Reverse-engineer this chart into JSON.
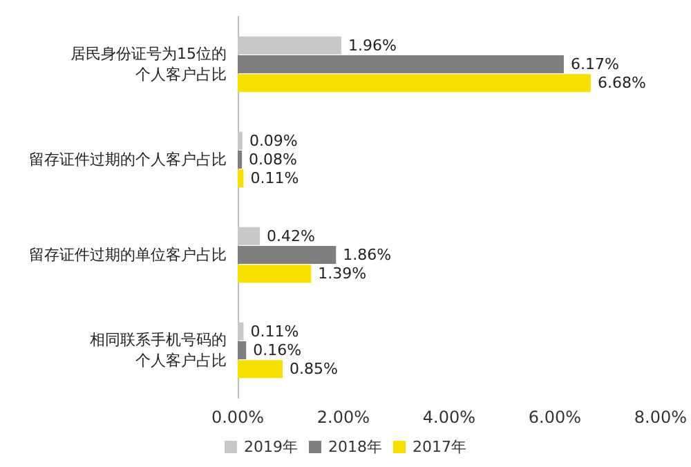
{
  "chart_data": {
    "type": "bar",
    "orientation": "horizontal",
    "categories": [
      "居民身份证号为15位的个人客户占比",
      "留存证件过期的个人客户占比",
      "留存证件过期的单位客户占比",
      "相同联系手机号码的个人客户占比"
    ],
    "series": [
      {
        "name": "2019年",
        "color": "#c8c8c8",
        "values": [
          1.96,
          0.09,
          0.42,
          0.11
        ],
        "value_labels": [
          "1.96%",
          "0.09%",
          "0.42%",
          "0.11%"
        ]
      },
      {
        "name": "2018年",
        "color": "#7f7f7f",
        "values": [
          6.17,
          0.08,
          1.86,
          0.16
        ],
        "value_labels": [
          "6.17%",
          "0.08%",
          "1.86%",
          "0.16%"
        ]
      },
      {
        "name": "2017年",
        "color": "#f5e000",
        "values": [
          6.68,
          0.11,
          1.39,
          0.85
        ],
        "value_labels": [
          "6.68%",
          "0.11%",
          "1.39%",
          "0.85%"
        ]
      }
    ],
    "xlim": [
      0,
      8
    ],
    "xticks": [
      {
        "value": 0,
        "label": "0.00%"
      },
      {
        "value": 2,
        "label": "2.00%"
      },
      {
        "value": 4,
        "label": "4.00%"
      },
      {
        "value": 6,
        "label": "6.00%"
      },
      {
        "value": 8,
        "label": "8.00%"
      }
    ],
    "grid": false,
    "legend": "bottom"
  }
}
